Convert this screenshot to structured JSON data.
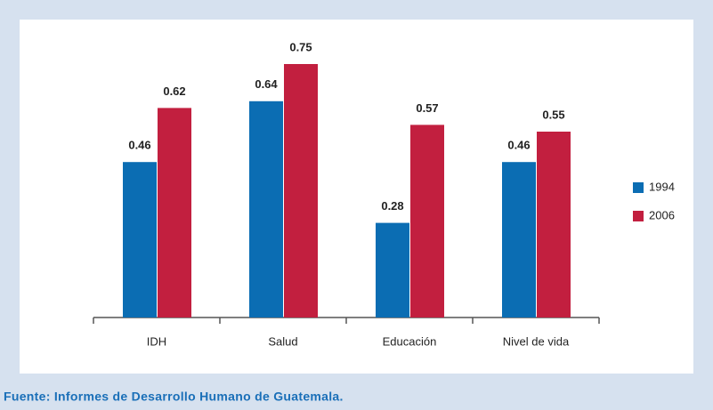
{
  "chart_data": {
    "type": "bar",
    "categories": [
      "IDH",
      "Salud",
      "Educación",
      "Nivel de vida"
    ],
    "series": [
      {
        "name": "1994",
        "color": "#0b6db3",
        "values": [
          0.46,
          0.64,
          0.28,
          0.46
        ]
      },
      {
        "name": "2006",
        "color": "#c21f3f",
        "values": [
          0.62,
          0.75,
          0.57,
          0.55
        ]
      }
    ],
    "source": "Fuente: Informes de Desarrollo Humano de Guatemala."
  }
}
